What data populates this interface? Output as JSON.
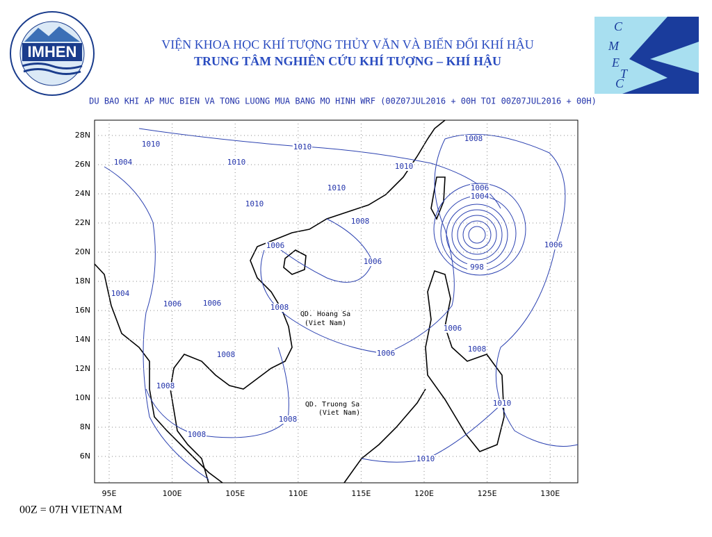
{
  "header": {
    "line1": "VIỆN KHOA HỌC KHÍ TƯỢNG THỦY VĂN VÀ BIẾN ĐỔI KHÍ HẬU",
    "line2": "TRUNG TÂM NGHIÊN CỨU KHÍ TƯỢNG – KHÍ HẬU",
    "logo_left": "IMHEN",
    "logo_right": [
      "C",
      "M",
      "E",
      "T",
      "C"
    ]
  },
  "map": {
    "title": "DU BAO KHI AP MUC BIEN VA TONG LUONG MUA BANG MO HINH WRF (00Z07JUL2016 + 00H TOI 00Z07JUL2016 + 00H)",
    "lat_labels": [
      "28N",
      "26N",
      "24N",
      "22N",
      "20N",
      "18N",
      "16N",
      "14N",
      "12N",
      "10N",
      "8N",
      "6N"
    ],
    "lon_labels": [
      "95E",
      "100E",
      "105E",
      "110E",
      "115E",
      "120E",
      "125E",
      "130E"
    ],
    "contour_labels": [
      "1010",
      "1010",
      "1004",
      "1010",
      "1010",
      "1008",
      "1010",
      "1006",
      "1004",
      "998",
      "1010",
      "1008",
      "1006",
      "1006",
      "1006",
      "1004",
      "1006",
      "1006",
      "1008",
      "1006",
      "1008",
      "1008",
      "1006",
      "1008",
      "1010",
      "1008",
      "1008",
      "1010"
    ],
    "place_labels": [
      "QD. Hoang Sa",
      "(Viet Nam)",
      "QD. Truong Sa",
      "(Viet Nam)"
    ]
  },
  "footer": "00Z = 07H VIETNAM"
}
